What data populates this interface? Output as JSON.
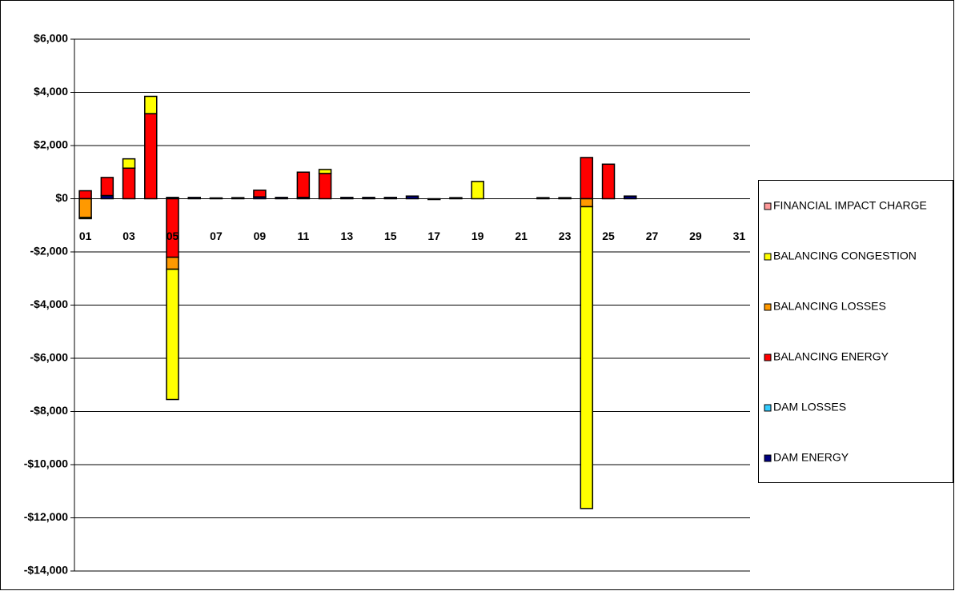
{
  "chart_data": {
    "type": "bar",
    "stacked": true,
    "categories": [
      "01",
      null,
      "03",
      null,
      "05",
      null,
      "07",
      null,
      "09",
      null,
      "11",
      null,
      "13",
      null,
      "15",
      null,
      "17",
      null,
      "19",
      null,
      "21",
      null,
      "23",
      null,
      "25",
      null,
      "27",
      null,
      "29",
      null,
      "31"
    ],
    "series": [
      {
        "name": "FINANCIAL IMPACT CHARGE",
        "color": "#ff9999",
        "values": [
          0,
          0,
          0,
          0,
          0,
          0,
          0,
          0,
          0,
          0,
          0,
          0,
          0,
          0,
          0,
          0,
          0,
          0,
          0,
          0,
          0,
          0,
          0,
          0,
          0,
          0,
          0,
          0,
          0,
          0,
          0
        ]
      },
      {
        "name": "BALANCING CONGESTION",
        "color": "#ffff00",
        "values": [
          -50,
          0,
          350,
          650,
          -4900,
          0,
          0,
          0,
          0,
          0,
          0,
          150,
          0,
          0,
          0,
          0,
          0,
          0,
          650,
          0,
          0,
          0,
          0,
          -11350,
          0,
          0,
          0,
          0,
          0,
          0,
          0
        ]
      },
      {
        "name": "BALANCING LOSSES",
        "color": "#ff9900",
        "values": [
          -700,
          0,
          0,
          0,
          -450,
          0,
          0,
          0,
          0,
          0,
          0,
          0,
          0,
          0,
          0,
          0,
          0,
          0,
          0,
          0,
          0,
          0,
          0,
          -300,
          0,
          0,
          0,
          0,
          0,
          0,
          0
        ]
      },
      {
        "name": "BALANCING ENERGY",
        "color": "#ff0000",
        "values": [
          300,
          680,
          1150,
          3200,
          -2200,
          0,
          0,
          0,
          250,
          0,
          950,
          950,
          0,
          0,
          0,
          0,
          0,
          0,
          0,
          0,
          0,
          0,
          0,
          1550,
          1300,
          0,
          0,
          0,
          0,
          0,
          0
        ]
      },
      {
        "name": "DAM LOSSES",
        "color": "#33ccff",
        "values": [
          0,
          0,
          0,
          0,
          0,
          0,
          0,
          0,
          0,
          0,
          0,
          0,
          0,
          0,
          0,
          0,
          0,
          0,
          0,
          0,
          0,
          0,
          0,
          0,
          0,
          0,
          0,
          0,
          0,
          0,
          0
        ]
      },
      {
        "name": "DAM ENERGY",
        "color": "#000080",
        "values": [
          0,
          120,
          0,
          0,
          50,
          50,
          30,
          40,
          70,
          50,
          50,
          0,
          50,
          50,
          50,
          100,
          -30,
          40,
          0,
          0,
          0,
          40,
          40,
          0,
          0,
          100,
          0,
          0,
          0,
          0,
          0
        ]
      }
    ],
    "ylim": [
      -14000,
      6000
    ],
    "yticks": [
      {
        "value": -14000,
        "label": "-$14,000"
      },
      {
        "value": -12000,
        "label": "-$12,000"
      },
      {
        "value": -10000,
        "label": "-$10,000"
      },
      {
        "value": -8000,
        "label": "-$8,000"
      },
      {
        "value": -6000,
        "label": "-$6,000"
      },
      {
        "value": -4000,
        "label": "-$4,000"
      },
      {
        "value": -2000,
        "label": "-$2,000"
      },
      {
        "value": 0,
        "label": "$0"
      },
      {
        "value": 2000,
        "label": "$2,000"
      },
      {
        "value": 4000,
        "label": "$4,000"
      },
      {
        "value": 6000,
        "label": "$6,000"
      }
    ],
    "grid": true,
    "legend": "right"
  }
}
